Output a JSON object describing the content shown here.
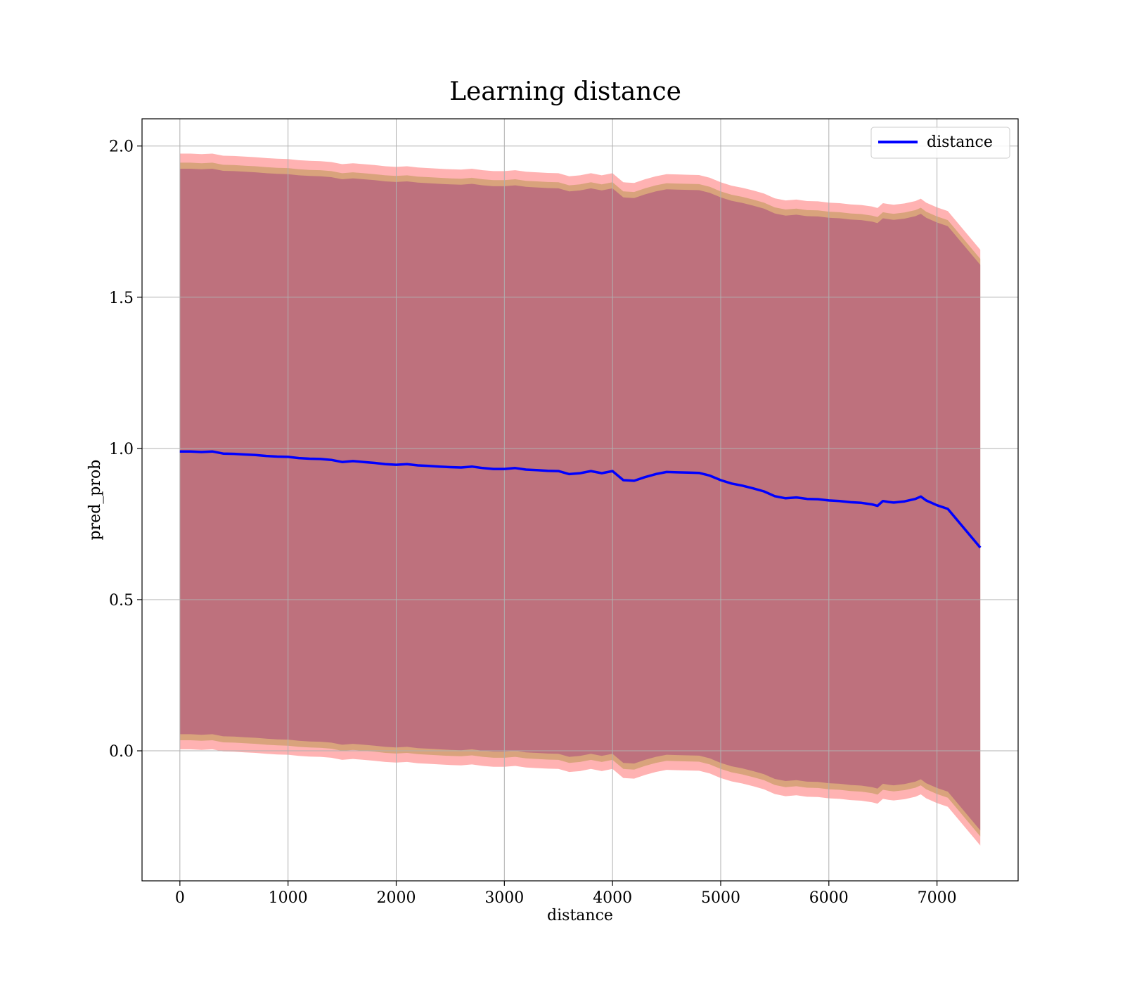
{
  "chart_data": {
    "type": "line",
    "title": "Learning distance",
    "xlabel": "distance",
    "ylabel": "pred_prob",
    "xlim": [
      -350,
      7750
    ],
    "ylim": [
      -0.43,
      2.09
    ],
    "x_ticks": [
      0,
      1000,
      2000,
      3000,
      4000,
      5000,
      6000,
      7000
    ],
    "y_ticks": [
      0.0,
      0.5,
      1.0,
      1.5,
      2.0
    ],
    "y_tick_labels": [
      "0.0",
      "0.5",
      "1.0",
      "1.5",
      "2.0"
    ],
    "grid": true,
    "legend": {
      "position": "top-right",
      "entries": [
        "distance"
      ]
    },
    "colors": {
      "line": "#0000ff",
      "band_outer": "#ff0000",
      "band_middle": "#808000",
      "band_inner": "#800080"
    },
    "series": [
      {
        "name": "distance",
        "x": [
          0,
          100,
          200,
          300,
          400,
          500,
          600,
          700,
          800,
          900,
          1000,
          1100,
          1200,
          1300,
          1400,
          1500,
          1600,
          1700,
          1800,
          1900,
          2000,
          2100,
          2200,
          2300,
          2400,
          2500,
          2600,
          2700,
          2800,
          2900,
          3000,
          3100,
          3200,
          3300,
          3400,
          3500,
          3600,
          3700,
          3800,
          3900,
          4000,
          4100,
          4200,
          4300,
          4400,
          4500,
          4600,
          4700,
          4800,
          4900,
          5000,
          5100,
          5200,
          5300,
          5400,
          5500,
          5600,
          5700,
          5800,
          5900,
          6000,
          6100,
          6200,
          6300,
          6400,
          6450,
          6500,
          6550,
          6600,
          6700,
          6800,
          6850,
          6900,
          7000,
          7100,
          7400
        ],
        "y": [
          0.99,
          0.99,
          0.988,
          0.99,
          0.983,
          0.982,
          0.98,
          0.978,
          0.975,
          0.973,
          0.972,
          0.968,
          0.966,
          0.965,
          0.962,
          0.955,
          0.958,
          0.955,
          0.952,
          0.948,
          0.946,
          0.948,
          0.944,
          0.942,
          0.94,
          0.938,
          0.937,
          0.94,
          0.935,
          0.932,
          0.932,
          0.935,
          0.93,
          0.928,
          0.926,
          0.925,
          0.915,
          0.918,
          0.925,
          0.918,
          0.925,
          0.895,
          0.893,
          0.905,
          0.915,
          0.922,
          0.921,
          0.92,
          0.919,
          0.91,
          0.895,
          0.884,
          0.877,
          0.868,
          0.858,
          0.842,
          0.835,
          0.838,
          0.833,
          0.832,
          0.828,
          0.826,
          0.822,
          0.82,
          0.815,
          0.81,
          0.826,
          0.823,
          0.821,
          0.825,
          0.833,
          0.841,
          0.828,
          0.812,
          0.8,
          0.672
        ]
      }
    ],
    "bands": [
      {
        "color": "band_outer",
        "lower_offset": -0.985,
        "upper_offset": 0.985
      },
      {
        "color": "band_middle",
        "lower_offset": -0.955,
        "upper_offset": 0.955
      },
      {
        "color": "band_inner",
        "lower_offset": -0.935,
        "upper_offset": 0.935
      }
    ]
  }
}
